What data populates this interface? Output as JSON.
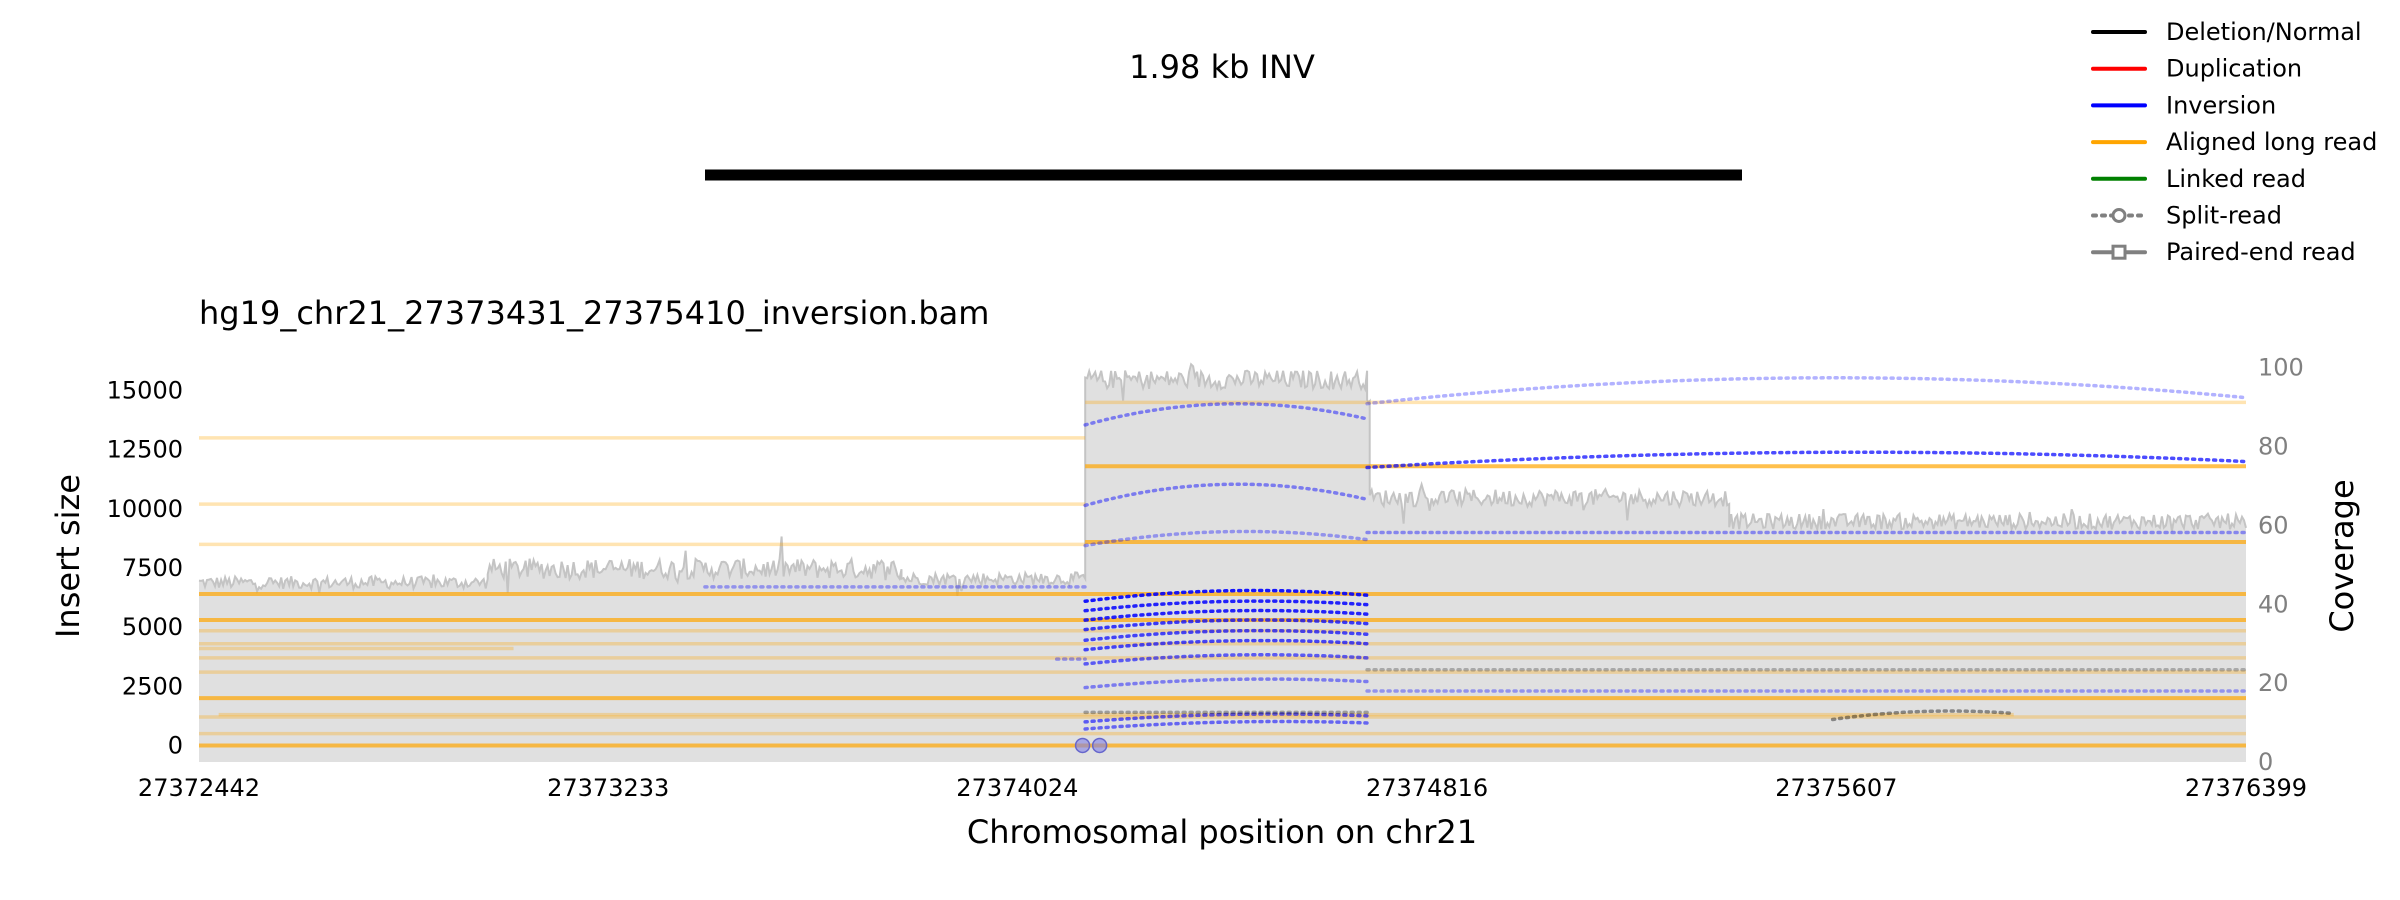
{
  "chart_data": [
    {
      "type": "line",
      "panel": "variant",
      "title": "1.98 kb INV",
      "variant": {
        "type": "INV",
        "start": 27373431,
        "end": 27375410
      }
    },
    {
      "type": "line",
      "panel": "alignment",
      "title": "hg19_chr21_27373431_27375410_inversion.bam",
      "xlabel": "Chromosomal position on chr21",
      "ylabel": "Insert size",
      "y2label": "Coverage",
      "xlim": [
        27372442,
        27376399
      ],
      "ylim": [
        -700,
        16800
      ],
      "y2lim": [
        0,
        105
      ],
      "xticks": [
        "27372442",
        "27373233",
        "27374024",
        "27374816",
        "27375607",
        "27376399"
      ],
      "yticks": [
        "0",
        "2500",
        "5000",
        "7500",
        "10000",
        "12500",
        "15000"
      ],
      "y2ticks": [
        "0",
        "20",
        "40",
        "60",
        "80",
        "100"
      ],
      "coverage_segments": [
        {
          "x_start": 27372442,
          "x_end": 27373000,
          "mean": 45.5,
          "noise": 1.6
        },
        {
          "x_start": 27373000,
          "x_end": 27373800,
          "mean": 49,
          "noise": 2.6
        },
        {
          "x_start": 27373800,
          "x_end": 27374155,
          "mean": 46.5,
          "noise": 1.6
        },
        {
          "x_start": 27374155,
          "x_end": 27374700,
          "mean": 97,
          "noise": 2.4
        },
        {
          "x_start": 27374700,
          "x_end": 27374705,
          "mean": 92,
          "noise": 1
        },
        {
          "x_start": 27374705,
          "x_end": 27375400,
          "mean": 67,
          "noise": 2.2
        },
        {
          "x_start": 27375400,
          "x_end": 27376399,
          "mean": 61,
          "noise": 2.0
        }
      ],
      "long_reads": [
        {
          "x_start": 27372442,
          "x_end": 27376399,
          "y": 0,
          "strong": true
        },
        {
          "x_start": 27372442,
          "x_end": 27376399,
          "y": 6400,
          "strong": true
        },
        {
          "x_start": 27372442,
          "x_end": 27376399,
          "y": 5300,
          "strong": true
        },
        {
          "x_start": 27372442,
          "x_end": 27376399,
          "y": 4850,
          "strong": false
        },
        {
          "x_start": 27372442,
          "x_end": 27376399,
          "y": 4300,
          "strong": false
        },
        {
          "x_start": 27372442,
          "x_end": 27376399,
          "y": 3700,
          "strong": false
        },
        {
          "x_start": 27372442,
          "x_end": 27376399,
          "y": 3100,
          "strong": false
        },
        {
          "x_start": 27372442,
          "x_end": 27376399,
          "y": 2000,
          "strong": true
        },
        {
          "x_start": 27372442,
          "x_end": 27376399,
          "y": 1200,
          "strong": false
        },
        {
          "x_start": 27372442,
          "x_end": 27376399,
          "y": 500,
          "strong": false
        },
        {
          "x_start": 27372442,
          "x_end": 27373050,
          "y": 4100,
          "strong": false
        },
        {
          "x_start": 27372480,
          "x_end": 27375950,
          "y": 1300,
          "strong": false
        },
        {
          "x_start": 27372442,
          "x_end": 27374155,
          "y": 8500,
          "strong": false
        },
        {
          "x_start": 27372442,
          "x_end": 27374155,
          "y": 10200,
          "strong": false
        },
        {
          "x_start": 27372442,
          "x_end": 27374155,
          "y": 13000,
          "strong": false
        },
        {
          "x_start": 27374155,
          "x_end": 27376399,
          "y": 14500,
          "strong": false
        },
        {
          "x_start": 27374155,
          "x_end": 27376399,
          "y": 11800,
          "strong": true
        },
        {
          "x_start": 27374155,
          "x_end": 27376399,
          "y": 8600,
          "strong": true
        }
      ],
      "split_reads": [
        {
          "x_start": 27374155,
          "x_end": 27374700,
          "y": 13800,
          "arc": 700,
          "color": "#0000ff",
          "opacity": 0.45
        },
        {
          "x_start": 27374155,
          "x_end": 27374700,
          "y": 10400,
          "arc": 700,
          "color": "#0000ff",
          "opacity": 0.45
        },
        {
          "x_start": 27374155,
          "x_end": 27374700,
          "y": 8700,
          "arc": 400,
          "color": "#0000ff",
          "opacity": 0.35
        },
        {
          "x_start": 27374155,
          "x_end": 27374700,
          "y": 6350,
          "arc": 250,
          "color": "#0000ff",
          "opacity": 0.9
        },
        {
          "x_start": 27374155,
          "x_end": 27374700,
          "y": 5950,
          "arc": 200,
          "color": "#0000ff",
          "opacity": 0.85
        },
        {
          "x_start": 27374155,
          "x_end": 27374700,
          "y": 5550,
          "arc": 200,
          "color": "#0000ff",
          "opacity": 0.85
        },
        {
          "x_start": 27374155,
          "x_end": 27374700,
          "y": 5150,
          "arc": 200,
          "color": "#0000ff",
          "opacity": 0.75
        },
        {
          "x_start": 27374155,
          "x_end": 27374700,
          "y": 4700,
          "arc": 200,
          "color": "#0000ff",
          "opacity": 0.7
        },
        {
          "x_start": 27374155,
          "x_end": 27374700,
          "y": 4300,
          "arc": 180,
          "color": "#0000ff",
          "opacity": 0.7
        },
        {
          "x_start": 27374155,
          "x_end": 27374700,
          "y": 3700,
          "arc": 180,
          "color": "#0000ff",
          "opacity": 0.6
        },
        {
          "x_start": 27374155,
          "x_end": 27374700,
          "y": 2700,
          "arc": 150,
          "color": "#0000ff",
          "opacity": 0.45
        },
        {
          "x_start": 27374155,
          "x_end": 27374700,
          "y": 1250,
          "arc": 120,
          "color": "#0000ff",
          "opacity": 0.6
        },
        {
          "x_start": 27374155,
          "x_end": 27374700,
          "y": 950,
          "arc": 100,
          "color": "#0000ff",
          "opacity": 0.55
        },
        {
          "x_start": 27374700,
          "x_end": 27376399,
          "y": 14700,
          "arc": 900,
          "color": "#0000ff",
          "opacity": 0.3
        },
        {
          "x_start": 27374700,
          "x_end": 27376399,
          "y": 12000,
          "arc": 450,
          "color": "#0000ff",
          "opacity": 0.7
        },
        {
          "x_start": 27374700,
          "x_end": 27376399,
          "y": 9000,
          "arc": 0,
          "color": "#0000ff",
          "opacity": 0.4
        },
        {
          "x_start": 27374700,
          "x_end": 27376399,
          "y": 2300,
          "arc": 0,
          "color": "#0000ff",
          "opacity": 0.35
        },
        {
          "x_start": 27374700,
          "x_end": 27376399,
          "y": 3200,
          "arc": 0,
          "color": "#000000",
          "opacity": 0.25
        },
        {
          "x_start": 27373420,
          "x_end": 27374155,
          "y": 6700,
          "arc": 0,
          "color": "#0000ff",
          "opacity": 0.35
        },
        {
          "x_start": 27374100,
          "x_end": 27374155,
          "y": 3650,
          "arc": 0,
          "color": "#0000ff",
          "opacity": 0.35
        },
        {
          "x_start": 27374155,
          "x_end": 27374700,
          "y": 1400,
          "arc": 0,
          "color": "#000000",
          "opacity": 0.3
        },
        {
          "x_start": 27375600,
          "x_end": 27375950,
          "y": 1350,
          "arc": 150,
          "color": "#000000",
          "opacity": 0.4
        }
      ],
      "paired_end_markers": [
        {
          "x": 27374150,
          "y": 0
        },
        {
          "x": 27374183,
          "y": 0
        }
      ],
      "legend_placement": "top-right"
    }
  ],
  "legend": [
    {
      "label": "Deletion/Normal",
      "color": "#000000",
      "style": "solid",
      "marker": "none"
    },
    {
      "label": "Duplication",
      "color": "#ff0000",
      "style": "solid",
      "marker": "none"
    },
    {
      "label": "Inversion",
      "color": "#0000ff",
      "style": "solid",
      "marker": "none"
    },
    {
      "label": "Aligned long read",
      "color": "#ffa500",
      "style": "solid",
      "marker": "none"
    },
    {
      "label": "Linked read",
      "color": "#008000",
      "style": "solid",
      "marker": "none"
    },
    {
      "label": "Split-read",
      "color": "#808080",
      "style": "dotted",
      "marker": "circle"
    },
    {
      "label": "Paired-end read",
      "color": "#808080",
      "style": "solid",
      "marker": "square"
    }
  ],
  "colors": {
    "coverage_fill": "#e0e0e0",
    "coverage_line": "#c4c4c4",
    "long_read": "#ffa500",
    "tick_text_right": "#808080"
  }
}
